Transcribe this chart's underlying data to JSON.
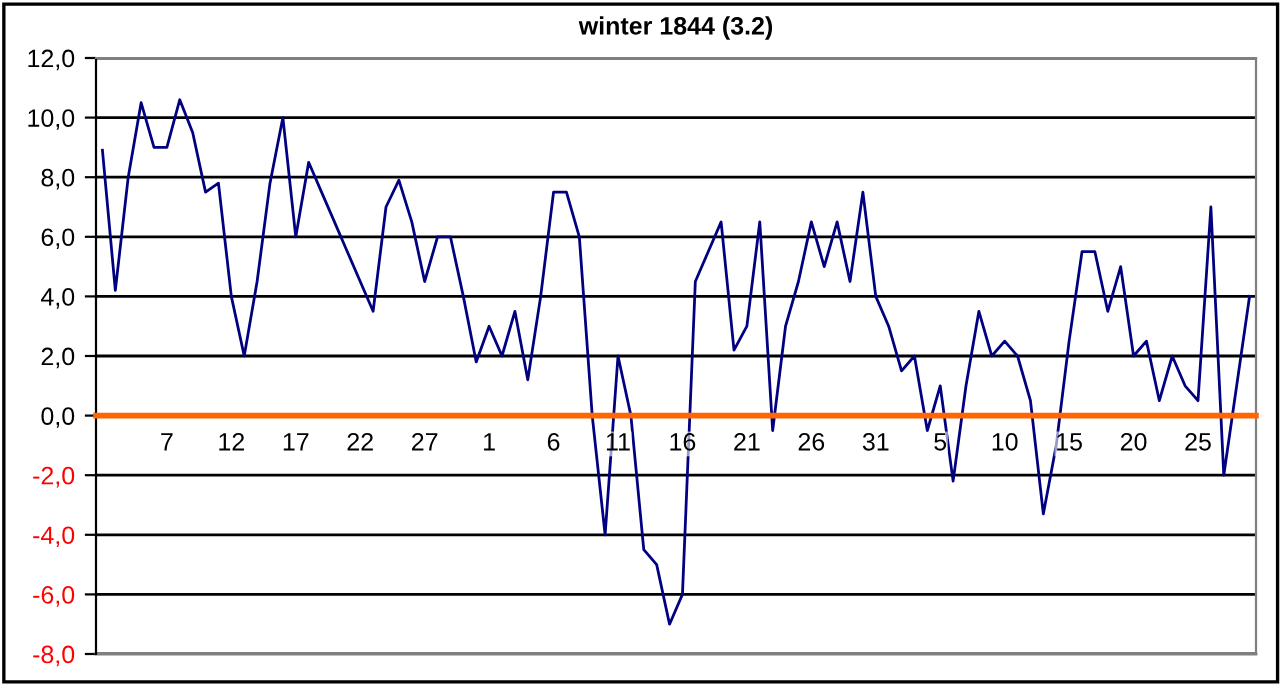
{
  "chart_data": {
    "type": "line",
    "title": "winter 1844 (3.2)",
    "categories": [
      null,
      null,
      null,
      null,
      null,
      "7",
      null,
      null,
      null,
      null,
      "12",
      null,
      null,
      null,
      null,
      "17",
      null,
      null,
      null,
      null,
      "22",
      null,
      null,
      null,
      null,
      "27",
      null,
      null,
      null,
      null,
      "1",
      null,
      null,
      null,
      null,
      "6",
      null,
      null,
      null,
      null,
      "11",
      null,
      null,
      null,
      null,
      "16",
      null,
      null,
      null,
      null,
      "21",
      null,
      null,
      null,
      null,
      "26",
      null,
      null,
      null,
      null,
      "31",
      null,
      null,
      null,
      null,
      "5",
      null,
      null,
      null,
      null,
      "10",
      null,
      null,
      null,
      null,
      "15",
      null,
      null,
      null,
      null,
      "20",
      null,
      null,
      null,
      null,
      "25",
      null,
      null,
      null,
      null
    ],
    "series": [
      {
        "color": "#000080",
        "values": [
          8.9,
          4.2,
          8.0,
          10.5,
          9.0,
          9.0,
          10.6,
          9.5,
          7.5,
          7.8,
          4.0,
          2.0,
          4.5,
          7.8,
          10.0,
          6.0,
          8.5,
          7.5,
          6.5,
          5.5,
          4.5,
          3.5,
          7.0,
          7.9,
          6.5,
          4.5,
          6.0,
          6.0,
          4.0,
          1.8,
          3.0,
          2.0,
          3.5,
          1.2,
          4.0,
          7.5,
          7.5,
          6.0,
          0.0,
          -4.0,
          2.0,
          0.0,
          -4.5,
          -5.0,
          -7.0,
          -6.0,
          4.5,
          5.5,
          6.5,
          2.2,
          3.0,
          6.5,
          -0.5,
          3.0,
          4.5,
          6.5,
          5.0,
          6.5,
          4.5,
          7.5,
          4.0,
          3.0,
          1.5,
          2.0,
          -0.5,
          1.0,
          -2.2,
          1.0,
          3.5,
          2.0,
          2.5,
          2.0,
          0.5,
          -3.3,
          -1.0,
          2.5,
          5.5,
          5.5,
          3.5,
          5.0,
          2.0,
          2.5,
          0.5,
          2.0,
          1.0,
          0.5,
          7.0,
          -2.0,
          1.0,
          4.0
        ]
      }
    ],
    "ylim": [
      -8,
      12
    ],
    "yticks": [
      {
        "value": -8,
        "label": "-8,0"
      },
      {
        "value": -6,
        "label": "-6,0"
      },
      {
        "value": -4,
        "label": "-4,0"
      },
      {
        "value": -2,
        "label": "-2,0"
      },
      {
        "value": 0,
        "label": "0,0"
      },
      {
        "value": 2,
        "label": "2,0"
      },
      {
        "value": 4,
        "label": "4,0"
      },
      {
        "value": 6,
        "label": "6,0"
      },
      {
        "value": 8,
        "label": "8,0"
      },
      {
        "value": 10,
        "label": "10,0"
      },
      {
        "value": 12,
        "label": "12,0"
      }
    ],
    "grid": "y",
    "legend": false,
    "marker": "none",
    "line_style": "solid"
  }
}
